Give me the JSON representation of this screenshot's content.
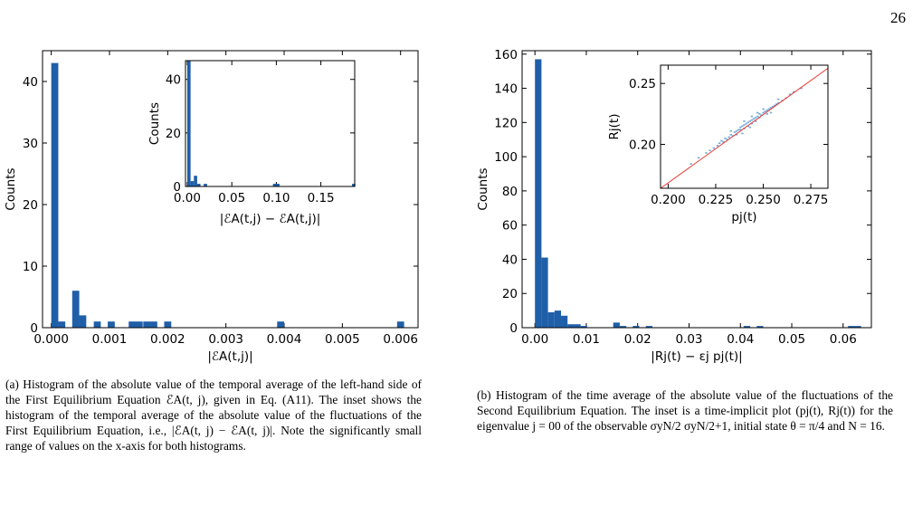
{
  "page_number": "26",
  "captions": {
    "a": "(a) Histogram of the absolute value of the temporal average of the left-hand side of the First Equilibrium Equation ℰA(t, j), given in Eq. (A11). The inset shows the histogram of the temporal average of the absolute value of the fluctuations of the First Equilibrium Equation, i.e., |ℰA(t, j) − ℰA(t, j)|. Note the significantly small range of values on the x-axis for both histograms.",
    "b": "(b) Histogram of the time average of the absolute value of the fluctuations of the Second Equilibrium Equation. The inset is a time-implicit plot (pj(t), Rj(t)) for the eigenvalue j = 00 of the observable σyN/2 σyN/2+1, initial state θ = π/4 and N = 16."
  },
  "colors": {
    "bar": "#1f5fa8",
    "scatter": "#6fa8dc",
    "fit_line": "#e8382f"
  },
  "chart_data": [
    {
      "id": "a-main",
      "type": "bar",
      "xlabel": "|ℰA(t,j)|",
      "ylabel": "Counts",
      "xlim": [
        -0.00015,
        0.0063
      ],
      "ylim": [
        0,
        45
      ],
      "xticks": [
        0.0,
        0.001,
        0.002,
        0.003,
        0.004,
        0.005,
        0.006
      ],
      "xtick_labels": [
        "0.000",
        "0.001",
        "0.002",
        "0.003",
        "0.004",
        "0.005",
        "0.006"
      ],
      "yticks": [
        0,
        10,
        20,
        30,
        40
      ],
      "bin_width": 0.000121,
      "bins": [
        {
          "x": 0.0,
          "count": 43
        },
        {
          "x": 0.00012,
          "count": 1
        },
        {
          "x": 0.00036,
          "count": 6
        },
        {
          "x": 0.00048,
          "count": 2
        },
        {
          "x": 0.00073,
          "count": 1
        },
        {
          "x": 0.00097,
          "count": 1
        },
        {
          "x": 0.00133,
          "count": 1
        },
        {
          "x": 0.00145,
          "count": 1
        },
        {
          "x": 0.00158,
          "count": 1
        },
        {
          "x": 0.0017,
          "count": 1
        },
        {
          "x": 0.00194,
          "count": 1
        },
        {
          "x": 0.00388,
          "count": 1
        },
        {
          "x": 0.00594,
          "count": 1
        }
      ]
    },
    {
      "id": "a-inset",
      "type": "bar",
      "xlabel": "|ℰA(t,j) − ℰA(t,j)|",
      "ylabel": "Counts",
      "xlim": [
        -0.002,
        0.188
      ],
      "ylim": [
        0,
        47
      ],
      "xticks": [
        0.0,
        0.05,
        0.1,
        0.15
      ],
      "xtick_labels": [
        "0.00",
        "0.05",
        "0.10",
        "0.15"
      ],
      "yticks": [
        0,
        20,
        40
      ],
      "bin_width": 0.0037,
      "bins": [
        {
          "x": 0.0,
          "count": 47
        },
        {
          "x": 0.0037,
          "count": 2
        },
        {
          "x": 0.0074,
          "count": 4
        },
        {
          "x": 0.0111,
          "count": 1
        },
        {
          "x": 0.0185,
          "count": 1
        },
        {
          "x": 0.0962,
          "count": 1
        },
        {
          "x": 0.0999,
          "count": 1
        },
        {
          "x": 0.185,
          "count": 1
        }
      ]
    },
    {
      "id": "b-main",
      "type": "bar",
      "xlabel": "|Rj(t) − εj pj(t)|",
      "ylabel": "Counts",
      "xlim": [
        -0.0025,
        0.0655
      ],
      "ylim": [
        0,
        162
      ],
      "xticks": [
        0.0,
        0.01,
        0.02,
        0.03,
        0.04,
        0.05,
        0.06
      ],
      "xtick_labels": [
        "0.00",
        "0.01",
        "0.02",
        "0.03",
        "0.04",
        "0.05",
        "0.06"
      ],
      "yticks": [
        0,
        20,
        40,
        60,
        80,
        100,
        120,
        140,
        160
      ],
      "bin_width": 0.00127,
      "bins": [
        {
          "x": 0.0,
          "count": 157
        },
        {
          "x": 0.00127,
          "count": 41
        },
        {
          "x": 0.00254,
          "count": 9
        },
        {
          "x": 0.00381,
          "count": 10
        },
        {
          "x": 0.00508,
          "count": 7
        },
        {
          "x": 0.00635,
          "count": 2
        },
        {
          "x": 0.00762,
          "count": 2
        },
        {
          "x": 0.00889,
          "count": 1
        },
        {
          "x": 0.01524,
          "count": 3
        },
        {
          "x": 0.01651,
          "count": 1
        },
        {
          "x": 0.01905,
          "count": 1
        },
        {
          "x": 0.02159,
          "count": 1
        },
        {
          "x": 0.04064,
          "count": 1
        },
        {
          "x": 0.04318,
          "count": 1
        },
        {
          "x": 0.06096,
          "count": 1
        },
        {
          "x": 0.06223,
          "count": 1
        }
      ]
    },
    {
      "id": "b-inset",
      "type": "scatter",
      "xlabel": "pj(t)",
      "ylabel": "Rj(t)",
      "xlim": [
        0.196,
        0.284
      ],
      "ylim": [
        0.164,
        0.265
      ],
      "xticks": [
        0.2,
        0.225,
        0.25,
        0.275
      ],
      "xtick_labels": [
        "0.200",
        "0.225",
        "0.250",
        "0.275"
      ],
      "yticks": [
        0.2,
        0.25
      ],
      "ytick_labels": [
        "0.20",
        "0.25"
      ],
      "fit_line": {
        "x": [
          0.196,
          0.284
        ],
        "y": [
          0.164,
          0.2625
        ]
      },
      "points": [
        [
          0.212,
          0.184
        ],
        [
          0.216,
          0.189
        ],
        [
          0.22,
          0.193
        ],
        [
          0.222,
          0.195
        ],
        [
          0.224,
          0.197
        ],
        [
          0.226,
          0.199
        ],
        [
          0.227,
          0.201
        ],
        [
          0.229,
          0.202
        ],
        [
          0.23,
          0.205
        ],
        [
          0.231,
          0.204
        ],
        [
          0.232,
          0.206
        ],
        [
          0.233,
          0.208
        ],
        [
          0.234,
          0.207
        ],
        [
          0.235,
          0.21
        ],
        [
          0.236,
          0.211
        ],
        [
          0.237,
          0.212
        ],
        [
          0.238,
          0.214
        ],
        [
          0.238,
          0.212
        ],
        [
          0.239,
          0.215
        ],
        [
          0.24,
          0.216
        ],
        [
          0.24,
          0.213
        ],
        [
          0.241,
          0.217
        ],
        [
          0.242,
          0.218
        ],
        [
          0.242,
          0.215
        ],
        [
          0.243,
          0.219
        ],
        [
          0.244,
          0.22
        ],
        [
          0.244,
          0.217
        ],
        [
          0.245,
          0.221
        ],
        [
          0.246,
          0.222
        ],
        [
          0.247,
          0.223
        ],
        [
          0.248,
          0.222
        ],
        [
          0.248,
          0.225
        ],
        [
          0.249,
          0.224
        ],
        [
          0.25,
          0.226
        ],
        [
          0.251,
          0.227
        ],
        [
          0.252,
          0.228
        ],
        [
          0.253,
          0.229
        ],
        [
          0.254,
          0.23
        ],
        [
          0.255,
          0.231
        ],
        [
          0.256,
          0.232
        ],
        [
          0.257,
          0.233
        ],
        [
          0.258,
          0.234
        ],
        [
          0.26,
          0.236
        ],
        [
          0.262,
          0.238
        ],
        [
          0.264,
          0.241
        ],
        [
          0.266,
          0.243
        ],
        [
          0.228,
          0.203
        ],
        [
          0.236,
          0.208
        ],
        [
          0.246,
          0.219
        ],
        [
          0.25,
          0.229
        ],
        [
          0.252,
          0.225
        ],
        [
          0.239,
          0.209
        ],
        [
          0.243,
          0.214
        ],
        [
          0.247,
          0.226
        ],
        [
          0.233,
          0.211
        ],
        [
          0.27,
          0.246
        ],
        [
          0.258,
          0.237
        ],
        [
          0.24,
          0.219
        ],
        [
          0.244,
          0.223
        ],
        [
          0.254,
          0.226
        ]
      ]
    }
  ]
}
